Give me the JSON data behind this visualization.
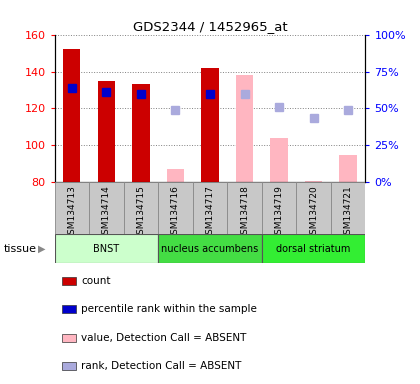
{
  "title": "GDS2344 / 1452965_at",
  "samples": [
    "GSM134713",
    "GSM134714",
    "GSM134715",
    "GSM134716",
    "GSM134717",
    "GSM134718",
    "GSM134719",
    "GSM134720",
    "GSM134721"
  ],
  "ylim_left": [
    80,
    160
  ],
  "ylim_right": [
    0,
    100
  ],
  "yticks_left": [
    80,
    100,
    120,
    140,
    160
  ],
  "yticks_right": [
    0,
    25,
    50,
    75,
    100
  ],
  "yticklabels_right": [
    "0%",
    "25%",
    "50%",
    "75%",
    "100%"
  ],
  "count_values": [
    152,
    135,
    133,
    null,
    142,
    null,
    null,
    null,
    null
  ],
  "rank_values": [
    131,
    129,
    128,
    null,
    128,
    null,
    null,
    null,
    null
  ],
  "absent_value": [
    null,
    null,
    null,
    87,
    null,
    138,
    104,
    81,
    95
  ],
  "absent_rank": [
    null,
    null,
    null,
    119,
    null,
    128,
    121,
    115,
    119
  ],
  "tissue_groups": [
    {
      "label": "BNST",
      "start": 0,
      "end": 3,
      "color": "#CCFFCC"
    },
    {
      "label": "nucleus accumbens",
      "start": 3,
      "end": 6,
      "color": "#44DD44"
    },
    {
      "label": "dorsal striatum",
      "start": 6,
      "end": 9,
      "color": "#33EE33"
    }
  ],
  "count_color": "#CC0000",
  "rank_color": "#0000CC",
  "absent_val_color": "#FFB6C1",
  "absent_rank_color": "#AAAADD",
  "bar_width": 0.5,
  "marker_size": 6,
  "sample_box_color": "#C8C8C8",
  "legend_items": [
    {
      "color": "#CC0000",
      "label": "count"
    },
    {
      "color": "#0000CC",
      "label": "percentile rank within the sample"
    },
    {
      "color": "#FFB6C1",
      "label": "value, Detection Call = ABSENT"
    },
    {
      "color": "#AAAADD",
      "label": "rank, Detection Call = ABSENT"
    }
  ]
}
